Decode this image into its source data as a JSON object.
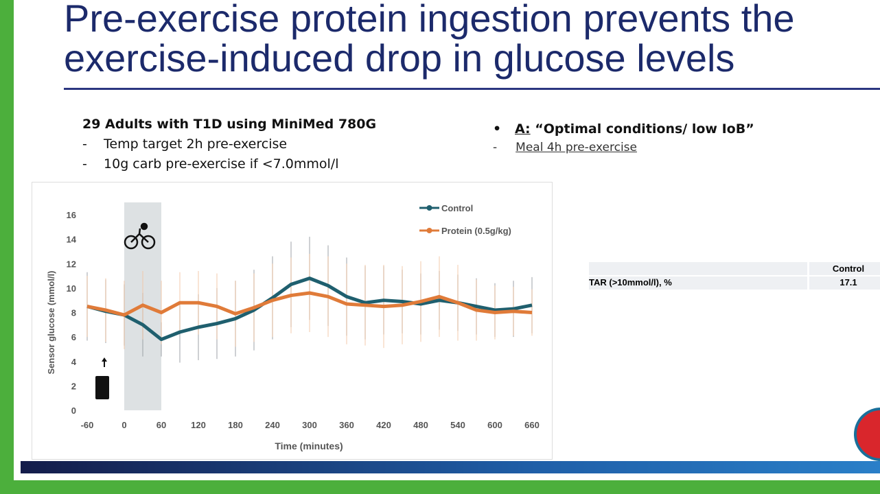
{
  "slide": {
    "title_lines": [
      "Pre-exercise protein ingestion prevents the",
      "exercise-induced drop in glucose levels"
    ],
    "study_heading": "29 Adults with T1D using MiniMed 780G",
    "study_bullets": [
      "Temp target 2h pre-exercise",
      "10g carb pre-exercise if <7.0mmol/l"
    ],
    "condition_label": "A:",
    "condition_text": "“Optimal conditions/ low IoB”",
    "condition_sub": "Meal 4h pre-exercise",
    "table": {
      "header": "Control",
      "row_label": "TAR (>10mmol/l), %",
      "row_value": "17.1"
    }
  },
  "chart_data": {
    "type": "line",
    "x_label": "Time (minutes)",
    "y_label": "Sensor glucose (mmol/l)",
    "x": [
      -60,
      -30,
      0,
      30,
      60,
      90,
      120,
      150,
      180,
      210,
      240,
      270,
      300,
      330,
      360,
      390,
      420,
      450,
      480,
      510,
      540,
      570,
      600,
      630,
      660
    ],
    "series": [
      {
        "name": "Control",
        "color": "#1f5f6e",
        "values": [
          8.5,
          8.1,
          7.8,
          7.0,
          5.8,
          6.4,
          6.8,
          7.1,
          7.5,
          8.2,
          9.2,
          10.3,
          10.8,
          10.2,
          9.3,
          8.8,
          9.0,
          8.9,
          8.7,
          9.0,
          8.8,
          8.5,
          8.2,
          8.3,
          8.6
        ],
        "errors": [
          2.8,
          2.6,
          2.5,
          2.6,
          1.4,
          2.5,
          2.7,
          2.9,
          3.1,
          3.3,
          3.4,
          3.5,
          3.4,
          3.3,
          3.2,
          3.0,
          2.8,
          2.6,
          2.5,
          2.4,
          2.3,
          2.3,
          2.2,
          2.3,
          2.3
        ]
      },
      {
        "name": "Protein (0.5g/kg)",
        "color": "#e07b39",
        "values": [
          8.5,
          8.2,
          7.8,
          8.6,
          8.0,
          8.8,
          8.8,
          8.5,
          7.9,
          8.4,
          9.0,
          9.4,
          9.6,
          9.3,
          8.7,
          8.6,
          8.5,
          8.6,
          8.9,
          9.3,
          8.8,
          8.2,
          8.0,
          8.1,
          8.0
        ],
        "errors": [
          2.5,
          2.6,
          2.8,
          2.8,
          2.6,
          2.5,
          2.6,
          2.7,
          2.7,
          2.8,
          3.0,
          3.1,
          3.2,
          3.3,
          3.3,
          3.3,
          3.4,
          3.2,
          3.3,
          3.3,
          3.1,
          2.5,
          2.2,
          2.0,
          1.9
        ]
      }
    ],
    "exercise_window": [
      0,
      60
    ],
    "xlim": [
      -60,
      660
    ],
    "xticks": [
      -60,
      0,
      60,
      120,
      180,
      240,
      300,
      360,
      420,
      480,
      540,
      600,
      660
    ],
    "ylim": [
      0,
      16
    ],
    "yticks": [
      0,
      2,
      4,
      6,
      8,
      10,
      12,
      14,
      16
    ],
    "grid": false
  }
}
